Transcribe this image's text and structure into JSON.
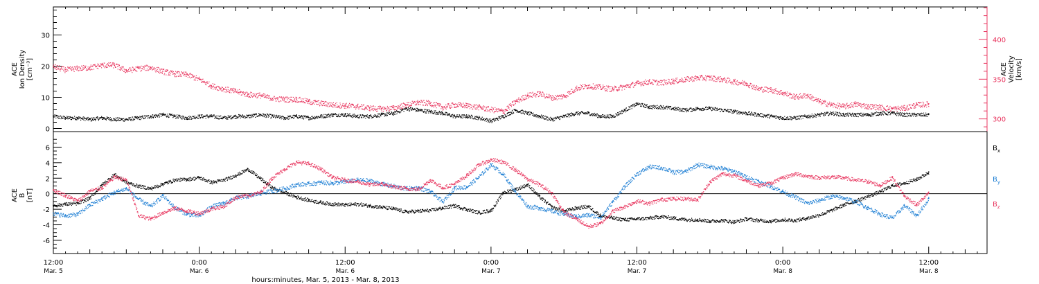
{
  "colors": {
    "black": "#000000",
    "velocity": "#e8365f",
    "bx": "#000000",
    "by": "#1e7fd4",
    "bz": "#e8365f",
    "axis": "#000000"
  },
  "x_axis": {
    "caption": "hours:minutes, Mar. 5, 2013 - Mar. 8, 2013",
    "ticks": [
      {
        "t": 0,
        "time": "12:00",
        "day": "Mar. 5"
      },
      {
        "t": 12,
        "time": "0:00",
        "day": "Mar. 6"
      },
      {
        "t": 24,
        "time": "12:00",
        "day": "Mar. 6"
      },
      {
        "t": 36,
        "time": "0:00",
        "day": "Mar. 7"
      },
      {
        "t": 48,
        "time": "12:00",
        "day": "Mar. 7"
      },
      {
        "t": 60,
        "time": "0:00",
        "day": "Mar. 8"
      },
      {
        "t": 72,
        "time": "12:00",
        "day": "Mar. 8"
      }
    ],
    "range_hours_from_mar5_1200": [
      0,
      76.8
    ]
  },
  "chart_data": [
    {
      "type": "scatter",
      "panel": "top",
      "left_axis": {
        "label_lines": [
          "ACE",
          "Ion Density",
          "[cm⁻³]"
        ],
        "ylim": [
          -1,
          39
        ],
        "ticks": [
          "0",
          "10",
          "20",
          "30"
        ],
        "tick_values": [
          0,
          10,
          20,
          30
        ]
      },
      "right_axis": {
        "label_lines": [
          "ACE",
          "Velocity",
          "[km/s]"
        ],
        "ylim": [
          284,
          441
        ],
        "ticks": [
          "300",
          "350",
          "400"
        ],
        "tick_values": [
          300,
          350,
          400
        ]
      },
      "series": [
        {
          "name": "",
          "axis": "left",
          "color": "#000000",
          "x": [
            0,
            1,
            2,
            3,
            4,
            5,
            6,
            7,
            8,
            9,
            10,
            11,
            12,
            13,
            14,
            15,
            16,
            17,
            18,
            19,
            20,
            21,
            22,
            23,
            24,
            25,
            26,
            27,
            28,
            29,
            30,
            31,
            32,
            33,
            34,
            35,
            36,
            37,
            38,
            39,
            40,
            41,
            42,
            43,
            44,
            45,
            46,
            47,
            48,
            49,
            50,
            51,
            52,
            53,
            54,
            55,
            56,
            57,
            58,
            59,
            60,
            61,
            62,
            63,
            64,
            65,
            66,
            67,
            68,
            69,
            70,
            71,
            72
          ],
          "y": [
            4,
            3.5,
            3.5,
            3,
            3.5,
            3,
            3,
            3.5,
            4,
            4.5,
            4,
            3.5,
            4,
            4,
            3.5,
            4,
            4,
            4.5,
            4,
            3.5,
            4,
            3.5,
            4,
            4.5,
            4.5,
            4,
            4,
            4.5,
            5,
            6.5,
            6,
            5.5,
            5,
            4,
            4,
            3.5,
            2.5,
            4,
            6,
            5,
            4,
            3,
            4,
            5,
            5,
            4,
            4,
            6,
            8,
            7,
            7,
            6.5,
            6,
            6.5,
            6.5,
            6,
            5.5,
            5,
            4.5,
            4,
            3.5,
            3.5,
            4,
            4.5,
            5,
            4.5,
            4.5,
            4.5,
            5,
            5,
            4.5,
            4.5,
            4.5
          ]
        },
        {
          "name": "",
          "axis": "right",
          "color": "#e8365f",
          "x": [
            0,
            1,
            2,
            3,
            4,
            5,
            6,
            7,
            8,
            9,
            10,
            11,
            12,
            13,
            14,
            15,
            16,
            17,
            18,
            19,
            20,
            21,
            22,
            23,
            24,
            25,
            26,
            27,
            28,
            29,
            30,
            31,
            32,
            33,
            34,
            35,
            36,
            37,
            38,
            39,
            40,
            41,
            42,
            43,
            44,
            45,
            46,
            47,
            48,
            49,
            50,
            51,
            52,
            53,
            54,
            55,
            56,
            57,
            58,
            59,
            60,
            61,
            62,
            63,
            64,
            65,
            66,
            67,
            68,
            69,
            70,
            71,
            72
          ],
          "y": [
            366,
            362,
            364,
            365,
            368,
            368,
            361,
            364,
            365,
            360,
            357,
            356,
            350,
            342,
            338,
            335,
            331,
            330,
            326,
            325,
            325,
            322,
            320,
            318,
            317,
            316,
            314,
            313,
            314,
            318,
            321,
            320,
            315,
            318,
            317,
            315,
            312,
            310,
            322,
            330,
            332,
            327,
            329,
            339,
            342,
            340,
            338,
            341,
            345,
            347,
            346,
            348,
            350,
            352,
            352,
            350,
            347,
            345,
            338,
            337,
            333,
            328,
            330,
            322,
            318,
            316,
            319,
            316,
            315,
            313,
            314,
            318,
            319
          ]
        }
      ]
    },
    {
      "type": "scatter",
      "panel": "bottom",
      "left_axis": {
        "label_lines": [
          "ACE",
          "B",
          "[nT]"
        ],
        "ylim": [
          -7.7,
          8
        ],
        "ticks": [
          "-6",
          "-4",
          "-2",
          "0",
          "2",
          "4",
          "6"
        ],
        "tick_values": [
          -6,
          -4,
          -2,
          0,
          2,
          4,
          6
        ]
      },
      "legend": {
        "placement": "right",
        "labels": [
          {
            "main": "B",
            "sub": "x",
            "color": "#000000"
          },
          {
            "main": "B",
            "sub": "y",
            "color": "#1e7fd4"
          },
          {
            "main": "B",
            "sub": "z",
            "color": "#e8365f"
          }
        ]
      },
      "series": [
        {
          "name": "Bx",
          "color": "#000000",
          "x": [
            0,
            1,
            2,
            3,
            4,
            5,
            6,
            7,
            8,
            9,
            10,
            11,
            12,
            13,
            14,
            15,
            16,
            17,
            18,
            19,
            20,
            21,
            22,
            23,
            24,
            25,
            26,
            27,
            28,
            29,
            30,
            31,
            32,
            33,
            34,
            35,
            36,
            37,
            38,
            39,
            40,
            41,
            42,
            43,
            44,
            45,
            46,
            47,
            48,
            49,
            50,
            51,
            52,
            53,
            54,
            55,
            56,
            57,
            58,
            59,
            60,
            61,
            62,
            63,
            64,
            65,
            66,
            67,
            68,
            69,
            70,
            71,
            72
          ],
          "y": [
            -1.5,
            -1.3,
            -1.2,
            -0.5,
            1.2,
            2.5,
            1.5,
            1,
            0.7,
            1.3,
            1.8,
            1.9,
            2.1,
            1.5,
            1.8,
            2.4,
            3.2,
            2,
            0.8,
            0.2,
            -0.4,
            -0.8,
            -1.1,
            -1.3,
            -1.4,
            -1.3,
            -1.5,
            -1.7,
            -1.9,
            -2.3,
            -2.2,
            -2.1,
            -1.8,
            -1.5,
            -2,
            -2.4,
            -2.1,
            0.2,
            0.6,
            1.2,
            -0.4,
            -1.7,
            -2.2,
            -1.8,
            -1.6,
            -2.8,
            -3.1,
            -3.3,
            -3.2,
            -3.1,
            -2.9,
            -3.1,
            -3.3,
            -3.3,
            -3.5,
            -3.4,
            -3.6,
            -3.2,
            -3.4,
            -3.5,
            -3.3,
            -3.4,
            -3.1,
            -2.7,
            -2.1,
            -1.4,
            -0.9,
            -0.3,
            0.3,
            1.1,
            1.4,
            1.9,
            2.8
          ]
        },
        {
          "name": "By",
          "color": "#1e7fd4",
          "x": [
            0,
            1,
            2,
            3,
            4,
            5,
            6,
            7,
            8,
            9,
            10,
            11,
            12,
            13,
            14,
            15,
            16,
            17,
            18,
            19,
            20,
            21,
            22,
            23,
            24,
            25,
            26,
            27,
            28,
            29,
            30,
            31,
            32,
            33,
            34,
            35,
            36,
            37,
            38,
            39,
            40,
            41,
            42,
            43,
            44,
            45,
            46,
            47,
            48,
            49,
            50,
            51,
            52,
            53,
            54,
            55,
            56,
            57,
            58,
            59,
            60,
            61,
            62,
            63,
            64,
            65,
            66,
            67,
            68,
            69,
            70,
            71,
            72
          ],
          "y": [
            -2.5,
            -2.8,
            -2.6,
            -1.4,
            -0.6,
            0.2,
            0.7,
            -0.7,
            -1.6,
            -0.2,
            -1.8,
            -2.6,
            -2.8,
            -1.6,
            -1.2,
            -0.5,
            -0.3,
            0.1,
            0.4,
            0.7,
            1.2,
            1.3,
            1.5,
            1.4,
            1.6,
            1.8,
            1.7,
            1.3,
            1,
            0.7,
            0.8,
            0.3,
            -1,
            0.8,
            0.9,
            2.2,
            3.8,
            2.5,
            0.3,
            -1.6,
            -1.8,
            -2.2,
            -2.6,
            -2.9,
            -2.7,
            -3,
            -1,
            1,
            2.6,
            3.5,
            3.4,
            2.8,
            2.9,
            3.8,
            3.5,
            3.3,
            2.9,
            2.2,
            1.6,
            1,
            0.3,
            -0.4,
            -1.2,
            -0.8,
            -0.3,
            -0.5,
            -1,
            -1.8,
            -2.6,
            -3.1,
            -1.5,
            -2.8,
            -0.6
          ]
        },
        {
          "name": "Bz",
          "color": "#e8365f",
          "x": [
            0,
            1,
            2,
            3,
            4,
            5,
            6,
            7,
            8,
            9,
            10,
            11,
            12,
            13,
            14,
            15,
            16,
            17,
            18,
            19,
            20,
            21,
            22,
            23,
            24,
            25,
            26,
            27,
            28,
            29,
            30,
            31,
            32,
            33,
            34,
            35,
            36,
            37,
            38,
            39,
            40,
            41,
            42,
            43,
            44,
            45,
            46,
            47,
            48,
            49,
            50,
            51,
            52,
            53,
            54,
            55,
            56,
            57,
            58,
            59,
            60,
            61,
            62,
            63,
            64,
            65,
            66,
            67,
            68,
            69,
            70,
            71,
            72
          ],
          "y": [
            0.5,
            -0.2,
            -0.9,
            0.4,
            0.8,
            2.2,
            1.8,
            -2.8,
            -3.2,
            -2.4,
            -1.8,
            -2.2,
            -2.5,
            -1.9,
            -1.6,
            -0.4,
            -0.2,
            0.2,
            2.1,
            3.2,
            4.1,
            3.9,
            3.2,
            2.1,
            1.8,
            1.6,
            1.2,
            1.3,
            0.9,
            0.7,
            0.6,
            1.8,
            0.8,
            1.3,
            2.4,
            3.8,
            4.4,
            4.1,
            3.1,
            1.9,
            1.2,
            0.1,
            -2.4,
            -3.2,
            -4.2,
            -3.8,
            -2.2,
            -1.6,
            -0.9,
            -1.2,
            -0.7,
            -0.6,
            -0.6,
            -0.7,
            1.6,
            2.6,
            2.4,
            1.7,
            1.1,
            1.4,
            2.1,
            2.6,
            2.3,
            2.1,
            2.2,
            2.1,
            1.8,
            1.6,
            1.1,
            2.1,
            -0.3,
            -1.4,
            0.2
          ]
        }
      ]
    }
  ]
}
